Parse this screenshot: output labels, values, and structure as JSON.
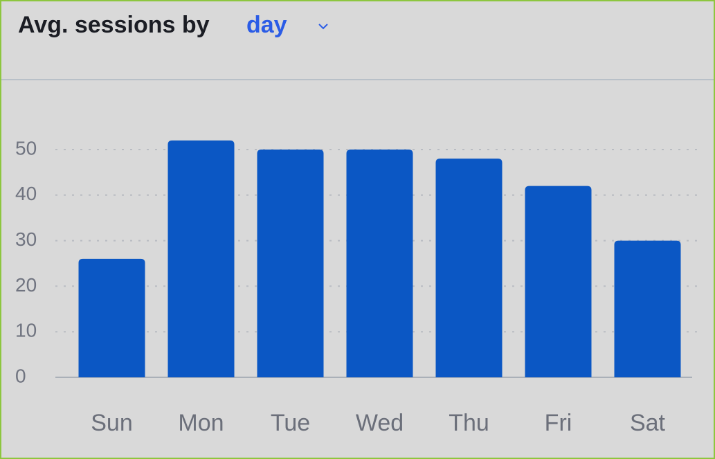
{
  "chart_data": {
    "type": "bar",
    "title": "Avg. sessions by",
    "title_selector": "day",
    "categories": [
      "Sun",
      "Mon",
      "Tue",
      "Wed",
      "Thu",
      "Fri",
      "Sat"
    ],
    "values": [
      26,
      52,
      50,
      50,
      48,
      42,
      30
    ],
    "color": "#0b57c4",
    "ylim": [
      0,
      50
    ],
    "yticks": [
      0,
      10,
      20,
      30,
      40,
      50
    ],
    "grid": true
  }
}
